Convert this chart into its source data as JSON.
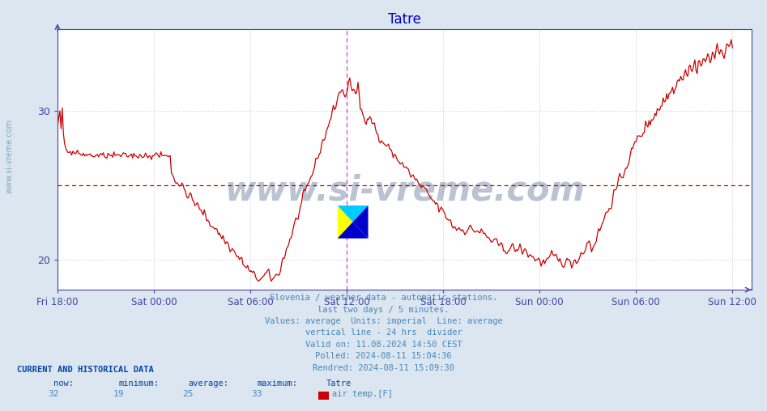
{
  "title": "Tatre",
  "title_color": "#0000cc",
  "fig_bg_color": "#dce6f0",
  "plot_bg_color": "#ffffff",
  "line_color": "#cc0000",
  "avg_line_color": "#cc0000",
  "avg_value": 25,
  "ylim": [
    18.0,
    35.5
  ],
  "yticks": [
    20,
    30
  ],
  "tick_color": "#4444aa",
  "grid_color": "#c8c8d8",
  "vline_color": "#cc44cc",
  "vline_position": 0.5,
  "footer_lines": [
    "Slovenia / weather data - automatic stations.",
    "last two days / 5 minutes.",
    "Values: average  Units: imperial  Line: average",
    "vertical line - 24 hrs  divider",
    "Valid on: 11.08.2024 14:50 CEST",
    "Polled: 2024-08-11 15:04:36",
    "Rendred: 2024-08-11 15:09:30"
  ],
  "footer_color": "#4488bb",
  "current_label": "CURRENT AND HISTORICAL DATA",
  "current_label_color": "#0044aa",
  "stats_col_labels": [
    "now:",
    "minimum:",
    "average:",
    "maximum:",
    "Tatre"
  ],
  "stats_values": [
    32,
    19,
    25,
    33
  ],
  "stats_color": "#4488cc",
  "legend_label": "air temp.[F]",
  "legend_color": "#cc0000",
  "xtick_labels": [
    "Fri 18:00",
    "Sat 00:00",
    "Sat 06:00",
    "Sat 12:00",
    "Sat 18:00",
    "Sun 00:00",
    "Sun 06:00",
    "Sun 12:00"
  ],
  "xtick_positions": [
    0.0,
    0.1667,
    0.3333,
    0.5,
    0.6667,
    0.8333,
    1.0,
    1.1667
  ],
  "xlim": [
    0.0,
    1.2
  ],
  "watermark": "www.si-vreme.com",
  "watermark_color": "#1a3a6a",
  "sidewatermark": "www.si-vreme.com",
  "sidewatermark_color": "#7799bb",
  "spine_color": "#4444aa",
  "arrow_color": "#4444aa"
}
